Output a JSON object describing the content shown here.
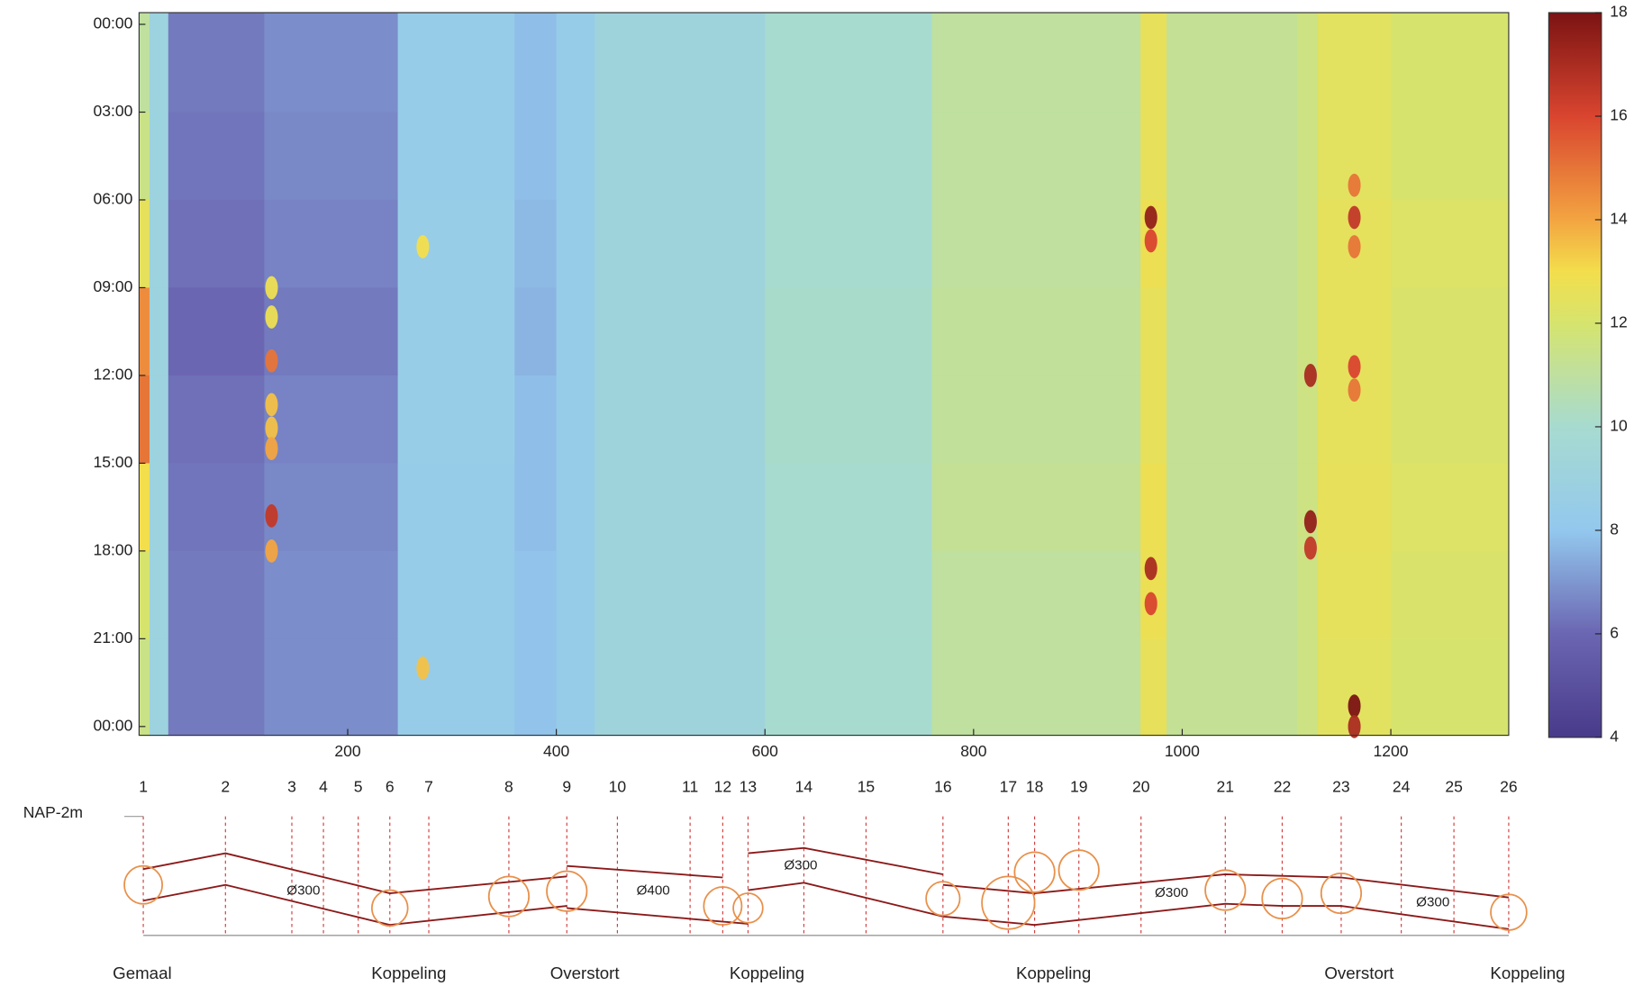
{
  "chart_data": {
    "type": "heatmap",
    "x": [
      0,
      10,
      28,
      120,
      248,
      360,
      400,
      437,
      600,
      760,
      960,
      985,
      1110,
      1130,
      1200,
      1313
    ],
    "y": [
      -0.4,
      3,
      6,
      9,
      12,
      15,
      18,
      21,
      24.3
    ],
    "values": [
      [
        11,
        9,
        6.4,
        6.8,
        8.4,
        7.8,
        8.4,
        9.2,
        10,
        11,
        12.6,
        11.2,
        11.6,
        12.4,
        12
      ],
      [
        11.5,
        9,
        6.3,
        6.7,
        8.4,
        7.8,
        8.4,
        9.2,
        10,
        11,
        12.6,
        11.2,
        11.6,
        12.4,
        12
      ],
      [
        12.5,
        9,
        6.2,
        6.6,
        8.5,
        7.7,
        8.4,
        9.2,
        10,
        11,
        12.8,
        11.2,
        11.6,
        12.5,
        12.2
      ],
      [
        14.5,
        9,
        6.0,
        6.4,
        8.5,
        7.6,
        8.4,
        9.2,
        10.1,
        11.1,
        12.6,
        11.2,
        11.6,
        12.5,
        12.1
      ],
      [
        15,
        9,
        6.2,
        6.6,
        8.5,
        7.8,
        8.4,
        9.2,
        10.1,
        11.1,
        12.6,
        11.2,
        11.6,
        12.5,
        12.1
      ],
      [
        13,
        9,
        6.3,
        6.7,
        8.4,
        7.8,
        8.4,
        9.2,
        10,
        11.2,
        12.8,
        11.2,
        11.6,
        12.6,
        12.2
      ],
      [
        12,
        9,
        6.4,
        6.8,
        8.4,
        7.9,
        8.4,
        9.2,
        10,
        11,
        12.8,
        11.2,
        11.6,
        12.5,
        12.1
      ],
      [
        11.5,
        9,
        6.4,
        6.8,
        8.4,
        7.9,
        8.4,
        9.2,
        10,
        11,
        12.6,
        11.2,
        11.6,
        12.4,
        12
      ]
    ],
    "hotspots": [
      {
        "x": 127,
        "t": 9,
        "value": 12.8
      },
      {
        "x": 127,
        "t": 10,
        "value": 12.8
      },
      {
        "x": 127,
        "t": 11.5,
        "value": 15
      },
      {
        "x": 127,
        "t": 13,
        "value": 13.5
      },
      {
        "x": 127,
        "t": 13.8,
        "value": 13.5
      },
      {
        "x": 127,
        "t": 14.5,
        "value": 14
      },
      {
        "x": 127,
        "t": 16.8,
        "value": 16.5
      },
      {
        "x": 127,
        "t": 18,
        "value": 14
      },
      {
        "x": 272,
        "t": 7.6,
        "value": 13
      },
      {
        "x": 272,
        "t": 22,
        "value": 13.5
      },
      {
        "x": 970,
        "t": 6.6,
        "value": 17.5
      },
      {
        "x": 970,
        "t": 7.4,
        "value": 16
      },
      {
        "x": 970,
        "t": 18.6,
        "value": 17
      },
      {
        "x": 970,
        "t": 19.8,
        "value": 16
      },
      {
        "x": 1123,
        "t": 12,
        "value": 17
      },
      {
        "x": 1123,
        "t": 17,
        "value": 17.5
      },
      {
        "x": 1123,
        "t": 17.9,
        "value": 16.5
      },
      {
        "x": 1165,
        "t": 5.5,
        "value": 15
      },
      {
        "x": 1165,
        "t": 6.6,
        "value": 16.5
      },
      {
        "x": 1165,
        "t": 7.6,
        "value": 15
      },
      {
        "x": 1165,
        "t": 11.7,
        "value": 16
      },
      {
        "x": 1165,
        "t": 12.5,
        "value": 15
      },
      {
        "x": 1165,
        "t": 23.3,
        "value": 18
      },
      {
        "x": 1165,
        "t": 24,
        "value": 17
      }
    ],
    "xlim": [
      0,
      1313
    ],
    "ylim": [
      -0.4,
      24.3
    ],
    "xticks": [
      200,
      400,
      600,
      800,
      1000,
      1200
    ],
    "yticks": [
      {
        "value": 0,
        "label": "00:00"
      },
      {
        "value": 3,
        "label": "03:00"
      },
      {
        "value": 6,
        "label": "06:00"
      },
      {
        "value": 9,
        "label": "09:00"
      },
      {
        "value": 12,
        "label": "12:00"
      },
      {
        "value": 15,
        "label": "15:00"
      },
      {
        "value": 18,
        "label": "18:00"
      },
      {
        "value": 21,
        "label": "21:00"
      },
      {
        "value": 24,
        "label": "00:00"
      }
    ],
    "clim": [
      4,
      18
    ],
    "cticks": [
      4,
      6,
      8,
      10,
      12,
      14,
      16,
      18
    ],
    "colorscale": [
      [
        4,
        "#483a8a"
      ],
      [
        6,
        "#6b66b2"
      ],
      [
        8,
        "#93c8ee"
      ],
      [
        10,
        "#a7dbd0"
      ],
      [
        12,
        "#d6e46e"
      ],
      [
        13,
        "#f3de4c"
      ],
      [
        14,
        "#f3a441"
      ],
      [
        16,
        "#d9452f"
      ],
      [
        18,
        "#7b1313"
      ]
    ]
  },
  "profile": {
    "reference": "NAP-2m",
    "nodes": [
      "1",
      "2",
      "3",
      "4",
      "5",
      "6",
      "7",
      "8",
      "9",
      "10",
      "11",
      "12",
      "13",
      "14",
      "15",
      "16",
      "17",
      "18",
      "19",
      "20",
      "21",
      "22",
      "23",
      "24",
      "25",
      "26"
    ],
    "pipes": [
      "Ø300",
      "Ø400",
      "Ø300",
      "Ø300",
      "Ø300"
    ],
    "structures": [
      "Gemaal",
      "Koppeling",
      "Overstort",
      "Koppeling",
      "Koppeling",
      "Overstort",
      "Koppeling"
    ]
  }
}
